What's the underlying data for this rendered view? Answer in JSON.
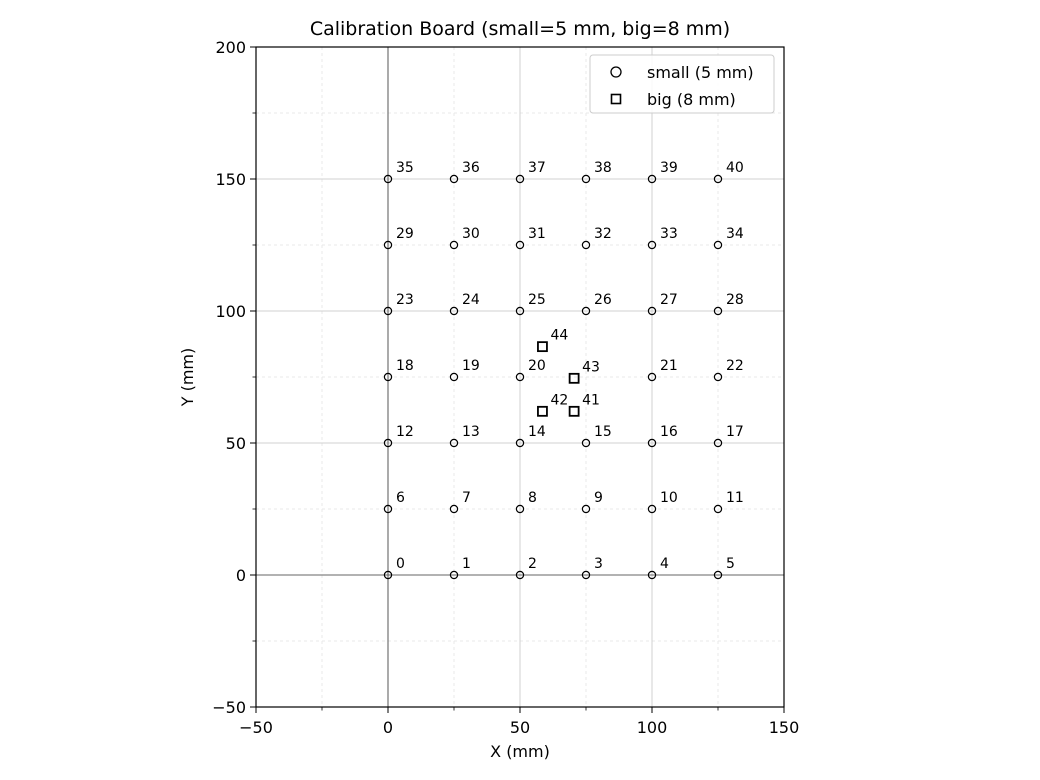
{
  "chart_data": {
    "type": "scatter",
    "title": "Calibration Board (small=5 mm, big=8 mm)",
    "xlabel": "X (mm)",
    "ylabel": "Y (mm)",
    "xlim": [
      -50,
      150
    ],
    "ylim": [
      -50,
      200
    ],
    "xticks": [
      "−50",
      "0",
      "50",
      "100",
      "150"
    ],
    "xtick_values": [
      -50,
      0,
      50,
      100,
      150
    ],
    "yticks": [
      "−50",
      "0",
      "50",
      "100",
      "150",
      "200"
    ],
    "ytick_values": [
      -50,
      0,
      50,
      100,
      150,
      200
    ],
    "minor_grid_step": 25,
    "grid": true,
    "legend_position": "top-right",
    "series": [
      {
        "name": "small (5 mm)",
        "marker": "circle",
        "points": [
          {
            "id": "0",
            "x": 0,
            "y": 0
          },
          {
            "id": "1",
            "x": 25,
            "y": 0
          },
          {
            "id": "2",
            "x": 50,
            "y": 0
          },
          {
            "id": "3",
            "x": 75,
            "y": 0
          },
          {
            "id": "4",
            "x": 100,
            "y": 0
          },
          {
            "id": "5",
            "x": 125,
            "y": 0
          },
          {
            "id": "6",
            "x": 0,
            "y": 25
          },
          {
            "id": "7",
            "x": 25,
            "y": 25
          },
          {
            "id": "8",
            "x": 50,
            "y": 25
          },
          {
            "id": "9",
            "x": 75,
            "y": 25
          },
          {
            "id": "10",
            "x": 100,
            "y": 25
          },
          {
            "id": "11",
            "x": 125,
            "y": 25
          },
          {
            "id": "12",
            "x": 0,
            "y": 50
          },
          {
            "id": "13",
            "x": 25,
            "y": 50
          },
          {
            "id": "14",
            "x": 50,
            "y": 50
          },
          {
            "id": "15",
            "x": 75,
            "y": 50
          },
          {
            "id": "16",
            "x": 100,
            "y": 50
          },
          {
            "id": "17",
            "x": 125,
            "y": 50
          },
          {
            "id": "18",
            "x": 0,
            "y": 75
          },
          {
            "id": "19",
            "x": 25,
            "y": 75
          },
          {
            "id": "20",
            "x": 50,
            "y": 75
          },
          {
            "id": "21",
            "x": 100,
            "y": 75
          },
          {
            "id": "22",
            "x": 125,
            "y": 75
          },
          {
            "id": "23",
            "x": 0,
            "y": 100
          },
          {
            "id": "24",
            "x": 25,
            "y": 100
          },
          {
            "id": "25",
            "x": 50,
            "y": 100
          },
          {
            "id": "26",
            "x": 75,
            "y": 100
          },
          {
            "id": "27",
            "x": 100,
            "y": 100
          },
          {
            "id": "28",
            "x": 125,
            "y": 100
          },
          {
            "id": "29",
            "x": 0,
            "y": 125
          },
          {
            "id": "30",
            "x": 25,
            "y": 125
          },
          {
            "id": "31",
            "x": 50,
            "y": 125
          },
          {
            "id": "32",
            "x": 75,
            "y": 125
          },
          {
            "id": "33",
            "x": 100,
            "y": 125
          },
          {
            "id": "34",
            "x": 125,
            "y": 125
          },
          {
            "id": "35",
            "x": 0,
            "y": 150
          },
          {
            "id": "36",
            "x": 25,
            "y": 150
          },
          {
            "id": "37",
            "x": 50,
            "y": 150
          },
          {
            "id": "38",
            "x": 75,
            "y": 150
          },
          {
            "id": "39",
            "x": 100,
            "y": 150
          },
          {
            "id": "40",
            "x": 125,
            "y": 150
          }
        ]
      },
      {
        "name": "big (8 mm)",
        "marker": "square",
        "points": [
          {
            "id": "41",
            "x": 70.5,
            "y": 62
          },
          {
            "id": "42",
            "x": 58.5,
            "y": 62
          },
          {
            "id": "43",
            "x": 70.5,
            "y": 74.5
          },
          {
            "id": "44",
            "x": 58.5,
            "y": 86.5
          }
        ]
      }
    ]
  }
}
